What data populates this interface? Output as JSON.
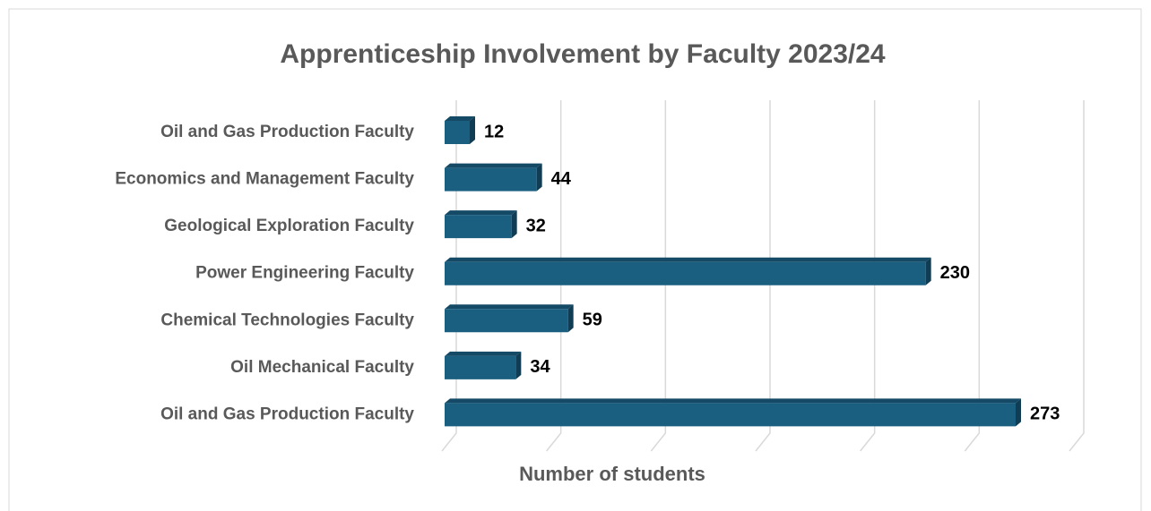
{
  "chart_data": {
    "type": "hbar",
    "title": "Apprenticeship Involvement by Faculty 2023/24",
    "x_label": "Number of students",
    "categories": [
      "Oil and Gas Production Faculty",
      "Economics and Management Faculty",
      "Geological Exploration Faculty",
      "Power Engineering Faculty",
      "Chemical Technologies Faculty",
      "Oil Mechanical Faculty",
      "Oil and Gas Production Faculty"
    ],
    "values": [
      12,
      44,
      32,
      230,
      59,
      34,
      273
    ],
    "color": "#1b5f80",
    "xlim": [
      0,
      300
    ],
    "xticks": [
      0,
      50,
      100,
      150,
      200,
      250,
      300
    ],
    "grid": true
  }
}
